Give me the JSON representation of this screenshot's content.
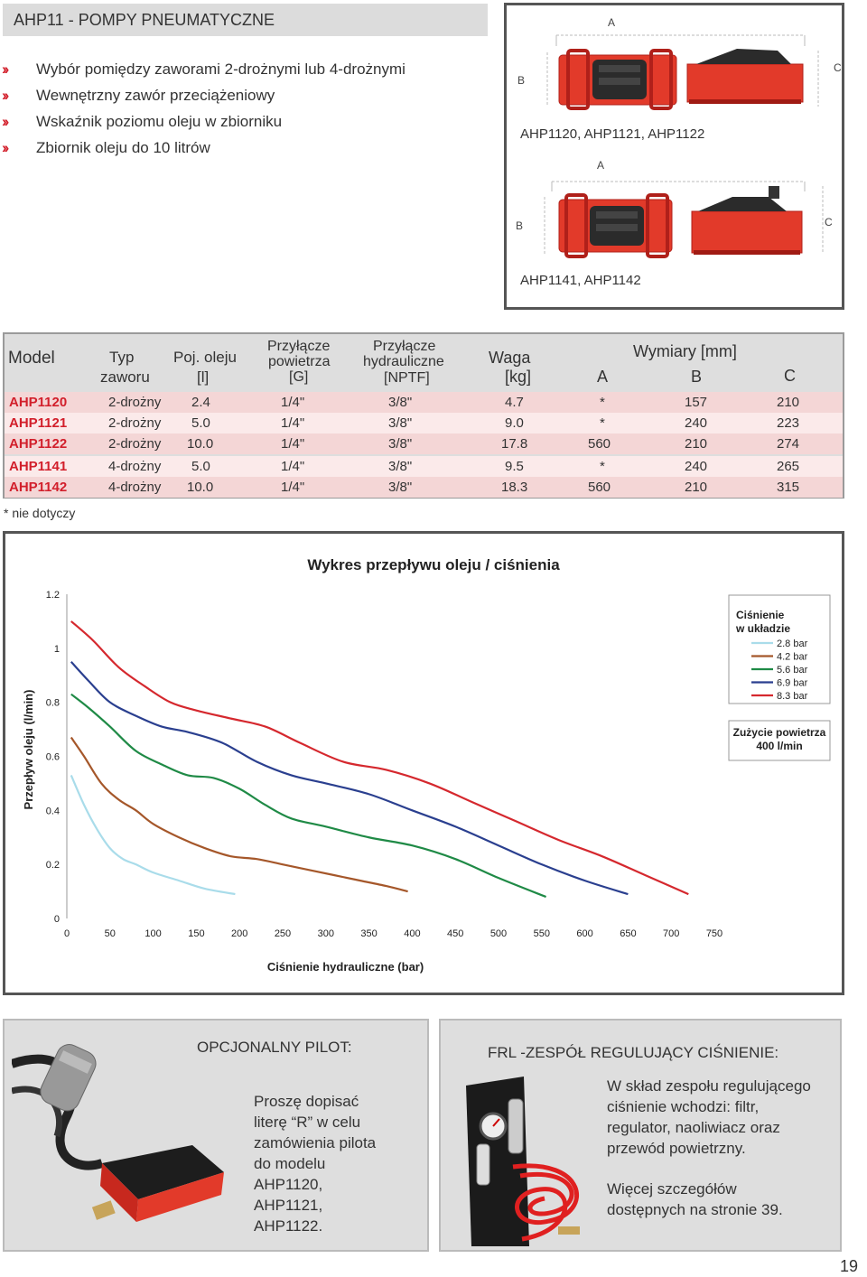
{
  "header": {
    "title": "AHP11 - POMPY PNEUMATYCZNE"
  },
  "features": [
    "Wybór pomiędzy zaworami 2-drożnymi lub 4-drożnymi",
    "Wewnętrzny zawór przeciążeniowy",
    "Wskaźnik poziomu oleju w zbiorniku",
    "Zbiornik oleju do 10 litrów"
  ],
  "bullet_glyph": "››",
  "dimensions": {
    "label_a": "A",
    "label_b": "B",
    "label_c": "C",
    "caption_top": "AHP1120, AHP1121, AHP1122",
    "caption_bottom": "AHP1141, AHP1142"
  },
  "spec_table": {
    "headers": {
      "model": "Model",
      "typ_1": "Typ",
      "typ_2": "zaworu",
      "poj_1": "Poj. oleju",
      "poj_2": "[l]",
      "pow_1": "Przyłącze",
      "pow_2": "powietrza",
      "pow_3": "[G]",
      "hyd_1": "Przyłącze",
      "hyd_2": "hydrauliczne",
      "hyd_3": "[NPTF]",
      "waga_1": "Waga",
      "waga_2": "[kg]",
      "wym": "Wymiary [mm]",
      "a": "A",
      "b": "B",
      "c": "C"
    },
    "rows": [
      {
        "model": "AHP1120",
        "typ": "2-drożny",
        "poj": "2.4",
        "pow": "1/4\"",
        "hyd": "3/8\"",
        "waga": "4.7",
        "a": "*",
        "b": "157",
        "c": "210"
      },
      {
        "model": "AHP1121",
        "typ": "2-drożny",
        "poj": "5.0",
        "pow": "1/4\"",
        "hyd": "3/8\"",
        "waga": "9.0",
        "a": "*",
        "b": "240",
        "c": "223"
      },
      {
        "model": "AHP1122",
        "typ": "2-drożny",
        "poj": "10.0",
        "pow": "1/4\"",
        "hyd": "3/8\"",
        "waga": "17.8",
        "a": "560",
        "b": "210",
        "c": "274"
      },
      {
        "model": "AHP1141",
        "typ": "4-drożny",
        "poj": "5.0",
        "pow": "1/4\"",
        "hyd": "3/8\"",
        "waga": "9.5",
        "a": "*",
        "b": "240",
        "c": "265"
      },
      {
        "model": "AHP1142",
        "typ": "4-drożny",
        "poj": "10.0",
        "pow": "1/4\"",
        "hyd": "3/8\"",
        "waga": "18.3",
        "a": "560",
        "b": "210",
        "c": "315"
      }
    ],
    "note": "* nie dotyczy"
  },
  "chart_data": {
    "type": "line",
    "title": "Wykres przepływu oleju / ciśnienia",
    "xlabel": "Ciśnienie hydrauliczne (bar)",
    "ylabel": "Przepływ oleju (l/min)",
    "xlim": [
      0,
      750
    ],
    "ylim": [
      0,
      1.2
    ],
    "xticks": [
      0,
      50,
      100,
      150,
      200,
      250,
      300,
      350,
      400,
      450,
      500,
      550,
      600,
      650,
      700,
      750
    ],
    "yticks": [
      0,
      0.2,
      0.4,
      0.6,
      0.8,
      1,
      1.2
    ],
    "ytick_labels": [
      "0",
      "0.2",
      "0.4",
      "0.6",
      "0.8",
      "1",
      "1.2"
    ],
    "grid": false,
    "legend_title_1": "Ciśnienie",
    "legend_title_2": "w układzie",
    "legend_position": "top-right",
    "note_1": "Zużycie powietrza",
    "note_2": "400 l/min",
    "series": [
      {
        "name": "2.8 bar",
        "color": "#a9dcea",
        "x": [
          5,
          20,
          35,
          50,
          65,
          80,
          100,
          130,
          160,
          195
        ],
        "y": [
          0.53,
          0.42,
          0.33,
          0.26,
          0.22,
          0.2,
          0.17,
          0.14,
          0.11,
          0.09
        ]
      },
      {
        "name": "4.2 bar",
        "color": "#a5572a",
        "x": [
          5,
          20,
          40,
          60,
          80,
          100,
          130,
          160,
          190,
          220,
          250,
          280,
          310,
          340,
          370,
          395
        ],
        "y": [
          0.67,
          0.6,
          0.5,
          0.44,
          0.4,
          0.35,
          0.3,
          0.26,
          0.23,
          0.22,
          0.2,
          0.18,
          0.16,
          0.14,
          0.12,
          0.1
        ]
      },
      {
        "name": "5.6 bar",
        "color": "#1f8a46",
        "x": [
          5,
          25,
          50,
          80,
          110,
          140,
          170,
          200,
          230,
          260,
          300,
          350,
          400,
          450,
          500,
          555
        ],
        "y": [
          0.83,
          0.78,
          0.71,
          0.62,
          0.57,
          0.53,
          0.52,
          0.48,
          0.42,
          0.37,
          0.34,
          0.3,
          0.27,
          0.22,
          0.15,
          0.08
        ]
      },
      {
        "name": "6.9 bar",
        "color": "#2a3f8f",
        "x": [
          5,
          25,
          50,
          80,
          110,
          140,
          180,
          220,
          260,
          300,
          350,
          400,
          450,
          500,
          550,
          600,
          650
        ],
        "y": [
          0.95,
          0.88,
          0.8,
          0.75,
          0.71,
          0.69,
          0.65,
          0.58,
          0.53,
          0.5,
          0.46,
          0.4,
          0.34,
          0.27,
          0.2,
          0.14,
          0.09
        ]
      },
      {
        "name": "8.3 bar",
        "color": "#d5282e",
        "x": [
          5,
          30,
          60,
          90,
          120,
          150,
          190,
          230,
          270,
          320,
          370,
          420,
          470,
          520,
          570,
          620,
          670,
          720
        ],
        "y": [
          1.1,
          1.03,
          0.93,
          0.86,
          0.8,
          0.77,
          0.74,
          0.71,
          0.65,
          0.58,
          0.55,
          0.5,
          0.43,
          0.36,
          0.29,
          0.23,
          0.16,
          0.09
        ]
      }
    ]
  },
  "pilot": {
    "title": "OPCJONALNY PILOT:",
    "body": [
      "Proszę dopisać",
      "literę “R” w celu",
      "zamówienia pilota",
      "do modelu",
      "AHP1120,",
      "AHP1121,",
      "AHP1122."
    ]
  },
  "frl": {
    "title": "FRL -ZESPÓŁ REGULUJĄCY CIŚNIENIE:",
    "body_1": [
      "W skład zespołu regulującego",
      "ciśnienie wchodzi: filtr,",
      "regulator, naoliwiacz oraz",
      "przewód powietrzny."
    ],
    "body_2": [
      "Więcej szczegółów",
      "dostępnych na stronie 39."
    ]
  },
  "page_number": "19"
}
